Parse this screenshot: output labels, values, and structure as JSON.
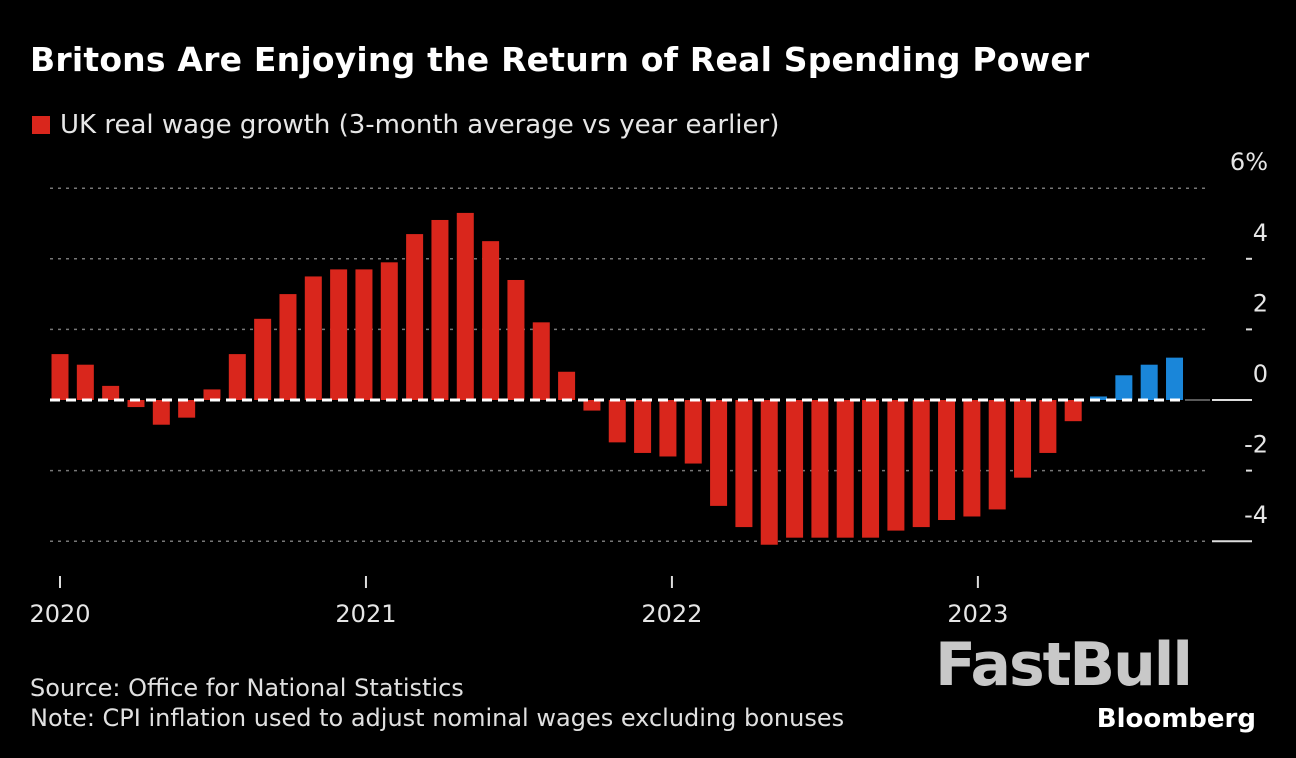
{
  "chart_data": {
    "type": "bar",
    "title": "Britons Are Enjoying the Return of Real Spending Power",
    "legend": [
      {
        "name": "UK real wage growth (3-month average vs year earlier)",
        "color": "#d9261c"
      }
    ],
    "categories": [
      "2020-01",
      "2020-02",
      "2020-03",
      "2020-04",
      "2020-05",
      "2020-06",
      "2020-07",
      "2020-08",
      "2020-09",
      "2020-10",
      "2020-11",
      "2020-12",
      "2021-01",
      "2021-02",
      "2021-03",
      "2021-04",
      "2021-05",
      "2021-06",
      "2021-07",
      "2021-08",
      "2021-09",
      "2021-10",
      "2021-11",
      "2021-12",
      "2022-01",
      "2022-02",
      "2022-03",
      "2022-04",
      "2022-05",
      "2022-06",
      "2022-07",
      "2022-08",
      "2022-09",
      "2022-10",
      "2022-11",
      "2022-12",
      "2023-01",
      "2023-02",
      "2023-03",
      "2023-04",
      "2023-05",
      "2023-06",
      "2023-07",
      "2023-08",
      "2023-09"
    ],
    "series": [
      {
        "name": "UK real wage growth (3-month average vs year earlier)",
        "values": [
          1.3,
          1.0,
          0.4,
          -0.2,
          -0.7,
          -0.5,
          0.3,
          1.3,
          2.3,
          3.0,
          3.5,
          3.7,
          3.7,
          3.9,
          4.7,
          5.1,
          5.3,
          4.5,
          3.4,
          2.2,
          0.8,
          -0.3,
          -1.2,
          -1.5,
          -1.6,
          -1.8,
          -3.0,
          -3.6,
          -4.1,
          -3.9,
          -3.9,
          -3.9,
          -3.9,
          -3.7,
          -3.6,
          -3.4,
          -3.3,
          -3.1,
          -2.2,
          -1.5,
          -0.6,
          0.1,
          0.7,
          1.0,
          1.2
        ]
      }
    ],
    "colors": {
      "negative_or_past": "#d9261c",
      "recent_positive": "#1a86d9"
    },
    "highlight_from_index": 41,
    "ylim": [
      -4,
      6
    ],
    "yticks": [
      "6%",
      "4",
      "2",
      "0",
      "-2",
      "-4"
    ],
    "ytick_values": [
      6,
      4,
      2,
      0,
      -2,
      -4
    ],
    "xticks": [
      "2020",
      "2021",
      "2022",
      "2023"
    ],
    "xtick_categories": [
      "2020-01",
      "2021-01",
      "2022-01",
      "2023-01"
    ],
    "grid": true,
    "legend_position": "top-left",
    "xlabel": "",
    "ylabel": ""
  },
  "footer": {
    "source": "Source: Office for National Statistics",
    "note": "Note: CPI inflation used to adjust nominal wages excluding bonuses"
  },
  "watermark": "FastBull",
  "brand": "Bloomberg"
}
